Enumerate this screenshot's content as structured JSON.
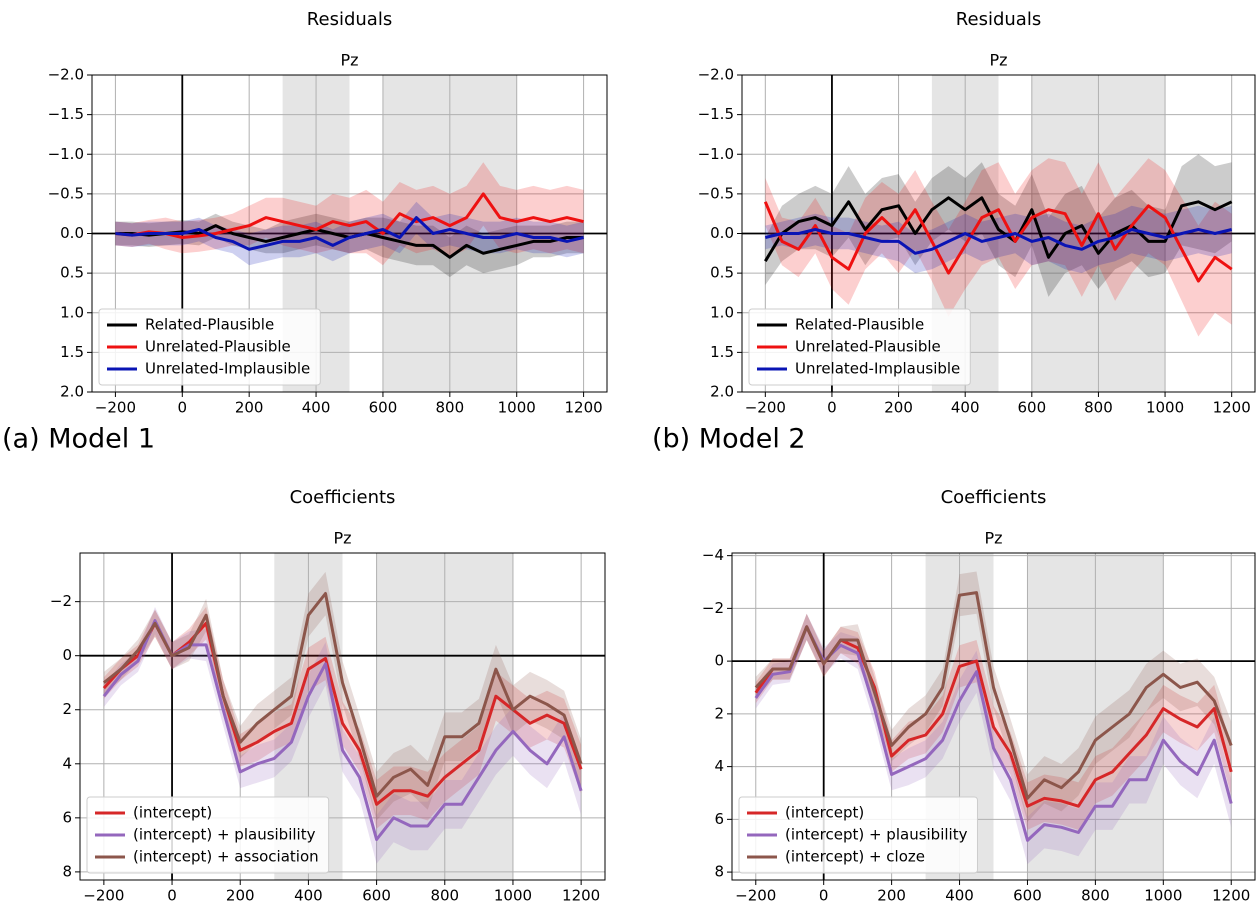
{
  "captions": [
    "(a) Model 1",
    "(b) Model 2"
  ],
  "chart_data": [
    {
      "type": "line",
      "title": "Residuals",
      "subtitle": "Pz",
      "x": [
        -200,
        -150,
        -100,
        -50,
        0,
        50,
        100,
        150,
        200,
        250,
        300,
        350,
        400,
        450,
        500,
        550,
        600,
        650,
        700,
        750,
        800,
        850,
        900,
        950,
        1000,
        1050,
        1100,
        1150,
        1200
      ],
      "xlim": [
        -270,
        1270
      ],
      "ylim": [
        2,
        -2
      ],
      "xticks": [
        {
          "value": -200,
          "label": "−200"
        },
        0,
        200,
        400,
        600,
        800,
        1000,
        1200
      ],
      "yticks": [
        {
          "value": -2,
          "label": "−2.0"
        },
        {
          "value": -1.5,
          "label": "−1.5"
        },
        {
          "value": -1,
          "label": "−1.0"
        },
        {
          "value": -0.5,
          "label": "−0.5"
        },
        {
          "value": 0,
          "label": "0.0"
        },
        0.5,
        {
          "value": 1,
          "label": "1.0"
        },
        1.5,
        {
          "value": 2,
          "label": "2.0"
        }
      ],
      "spans": [
        [
          300,
          500
        ],
        [
          600,
          1000
        ]
      ],
      "grid": true,
      "zero_lines": true,
      "legend": "lower left",
      "series": [
        {
          "name": "Related-Plausible",
          "color": "#000000",
          "values": [
            0,
            0,
            0.02,
            0,
            -0.02,
            0,
            -0.1,
            0,
            0.05,
            0.1,
            0.05,
            0,
            -0.05,
            0,
            0.05,
            0,
            0.05,
            0.1,
            0.15,
            0.15,
            0.3,
            0.15,
            0.25,
            0.2,
            0.15,
            0.1,
            0.1,
            0.05,
            0.05
          ],
          "error": [
            0.15,
            0.15,
            0.15,
            0.15,
            0.15,
            0.15,
            0.15,
            0.15,
            0.15,
            0.15,
            0.2,
            0.2,
            0.2,
            0.2,
            0.2,
            0.2,
            0.25,
            0.25,
            0.25,
            0.25,
            0.25,
            0.25,
            0.25,
            0.25,
            0.25,
            0.2,
            0.2,
            0.2,
            0.2
          ]
        },
        {
          "name": "Unrelated-Plausible",
          "color": "#ee1111",
          "values": [
            0,
            0.02,
            -0.02,
            0,
            0.05,
            0.03,
            0,
            -0.05,
            -0.1,
            -0.2,
            -0.15,
            -0.1,
            -0.05,
            -0.15,
            -0.1,
            -0.15,
            0,
            -0.25,
            -0.15,
            -0.2,
            -0.1,
            -0.2,
            -0.5,
            -0.2,
            -0.15,
            -0.2,
            -0.15,
            -0.2,
            -0.15
          ],
          "error": [
            0.15,
            0.15,
            0.15,
            0.2,
            0.2,
            0.2,
            0.2,
            0.2,
            0.25,
            0.25,
            0.3,
            0.3,
            0.3,
            0.35,
            0.35,
            0.4,
            0.4,
            0.4,
            0.4,
            0.4,
            0.4,
            0.4,
            0.4,
            0.4,
            0.4,
            0.4,
            0.4,
            0.4,
            0.4
          ]
        },
        {
          "name": "Unrelated-Implausible",
          "color": "#0a14b4",
          "values": [
            0,
            0.02,
            0,
            0,
            0,
            -0.05,
            0.05,
            0.1,
            0.2,
            0.15,
            0.1,
            0.1,
            0.05,
            0.15,
            0.05,
            0,
            -0.05,
            0.05,
            -0.2,
            0,
            -0.05,
            0,
            0.05,
            0.05,
            0,
            0.05,
            0.05,
            0.1,
            0.05
          ],
          "error": [
            0.15,
            0.15,
            0.15,
            0.15,
            0.15,
            0.15,
            0.15,
            0.15,
            0.2,
            0.2,
            0.2,
            0.2,
            0.2,
            0.2,
            0.2,
            0.2,
            0.2,
            0.2,
            0.2,
            0.2,
            0.2,
            0.2,
            0.2,
            0.2,
            0.2,
            0.2,
            0.2,
            0.2,
            0.2
          ]
        }
      ]
    },
    {
      "type": "line",
      "title": "Residuals",
      "subtitle": "Pz",
      "x": [
        -200,
        -150,
        -100,
        -50,
        0,
        50,
        100,
        150,
        200,
        250,
        300,
        350,
        400,
        450,
        500,
        550,
        600,
        650,
        700,
        750,
        800,
        850,
        900,
        950,
        1000,
        1050,
        1100,
        1150,
        1200
      ],
      "xlim": [
        -270,
        1270
      ],
      "ylim": [
        2,
        -2
      ],
      "xticks": [
        {
          "value": -200,
          "label": "−200"
        },
        0,
        200,
        400,
        600,
        800,
        1000,
        1200
      ],
      "yticks": [
        {
          "value": -2,
          "label": "−2.0"
        },
        {
          "value": -1.5,
          "label": "−1.5"
        },
        {
          "value": -1,
          "label": "−1.0"
        },
        {
          "value": -0.5,
          "label": "−0.5"
        },
        {
          "value": 0,
          "label": "0.0"
        },
        0.5,
        {
          "value": 1,
          "label": "1.0"
        },
        1.5,
        {
          "value": 2,
          "label": "2.0"
        }
      ],
      "spans": [
        [
          300,
          500
        ],
        [
          600,
          1000
        ]
      ],
      "grid": true,
      "zero_lines": true,
      "legend": "lower left",
      "series": [
        {
          "name": "Related-Plausible",
          "color": "#000000",
          "values": [
            0.35,
            0,
            -0.15,
            -0.2,
            -0.1,
            -0.4,
            -0.05,
            -0.3,
            -0.35,
            0,
            -0.3,
            -0.45,
            -0.3,
            -0.45,
            -0.05,
            0.1,
            -0.3,
            0.3,
            0,
            -0.1,
            0.25,
            0,
            -0.1,
            0.1,
            0.1,
            -0.35,
            -0.4,
            -0.3,
            -0.4
          ],
          "error": [
            0.3,
            0.35,
            0.35,
            0.4,
            0.4,
            0.45,
            0.45,
            0.4,
            0.4,
            0.4,
            0.4,
            0.4,
            0.4,
            0.45,
            0.45,
            0.45,
            0.45,
            0.5,
            0.5,
            0.5,
            0.45,
            0.45,
            0.45,
            0.45,
            0.4,
            0.5,
            0.6,
            0.55,
            0.5
          ]
        },
        {
          "name": "Unrelated-Plausible",
          "color": "#ee1111",
          "values": [
            -0.4,
            0.1,
            0.2,
            -0.1,
            0.3,
            0.45,
            0,
            -0.2,
            0,
            -0.3,
            0.1,
            0.5,
            0.15,
            -0.2,
            -0.3,
            0.1,
            -0.2,
            -0.3,
            -0.25,
            0.15,
            -0.25,
            0.2,
            -0.1,
            -0.35,
            -0.2,
            0.2,
            0.6,
            0.3,
            0.45
          ],
          "error": [
            0.3,
            0.3,
            0.35,
            0.35,
            0.4,
            0.45,
            0.45,
            0.45,
            0.5,
            0.5,
            0.5,
            0.55,
            0.55,
            0.6,
            0.6,
            0.6,
            0.6,
            0.65,
            0.65,
            0.65,
            0.65,
            0.65,
            0.6,
            0.6,
            0.6,
            0.65,
            0.7,
            0.7,
            0.7
          ]
        },
        {
          "name": "Unrelated-Implausible",
          "color": "#0a14b4",
          "values": [
            0.05,
            0,
            0,
            -0.05,
            0,
            0,
            0.05,
            0.1,
            0.1,
            0.25,
            0.2,
            0.1,
            0,
            0.1,
            0.05,
            0,
            0.1,
            0.05,
            0.15,
            0.2,
            0.1,
            0.05,
            -0.05,
            0,
            0.05,
            0,
            -0.05,
            0,
            -0.05
          ],
          "error": [
            0.15,
            0.15,
            0.2,
            0.2,
            0.2,
            0.2,
            0.2,
            0.2,
            0.25,
            0.25,
            0.25,
            0.25,
            0.25,
            0.25,
            0.25,
            0.25,
            0.3,
            0.3,
            0.3,
            0.3,
            0.3,
            0.3,
            0.3,
            0.3,
            0.3,
            0.3,
            0.3,
            0.3,
            0.3
          ]
        }
      ]
    },
    {
      "type": "line",
      "title": "Coefficients",
      "subtitle": "Pz",
      "x": [
        -200,
        -150,
        -100,
        -50,
        0,
        50,
        100,
        150,
        200,
        250,
        300,
        350,
        400,
        450,
        500,
        550,
        600,
        650,
        700,
        750,
        800,
        850,
        900,
        950,
        1000,
        1050,
        1100,
        1150,
        1200
      ],
      "xlim": [
        -270,
        1270
      ],
      "ylim": [
        8.3,
        -3.8
      ],
      "xticks": [
        {
          "value": -200,
          "label": "−200"
        },
        0,
        200,
        400,
        600,
        800,
        1000,
        1200
      ],
      "yticks": [
        {
          "value": -2,
          "label": "−2"
        },
        0,
        2,
        4,
        6,
        8
      ],
      "spans": [
        [
          300,
          500
        ],
        [
          600,
          1000
        ]
      ],
      "grid": true,
      "zero_lines": true,
      "legend": "lower left",
      "series": [
        {
          "name": "(intercept)",
          "color": "#d62728",
          "values": [
            1.2,
            0.5,
            0,
            -1.2,
            0,
            -0.5,
            -1.2,
            1.5,
            3.5,
            3.2,
            2.8,
            2.5,
            0.5,
            0.1,
            2.5,
            3.5,
            5.5,
            5,
            5,
            5.2,
            4.5,
            4,
            3.5,
            1.5,
            2,
            2.5,
            2.2,
            2.5,
            4.2
          ],
          "error": [
            0.4,
            0.4,
            0.4,
            0.5,
            0.5,
            0.5,
            0.6,
            0.6,
            0.6,
            0.7,
            0.7,
            0.7,
            0.8,
            0.8,
            0.8,
            0.8,
            0.9,
            0.9,
            0.9,
            0.9,
            0.9,
            0.9,
            0.9,
            0.9,
            0.9,
            0.9,
            0.9,
            0.9,
            0.9
          ]
        },
        {
          "name": "(intercept) + plausibility",
          "color": "#9467bd",
          "values": [
            1.5,
            0.7,
            0.2,
            -1.3,
            0,
            -0.4,
            -0.4,
            2,
            4.3,
            4,
            3.8,
            3.2,
            1.5,
            0.3,
            3.5,
            4.5,
            6.8,
            6,
            6.3,
            6.3,
            5.5,
            5.5,
            4.5,
            3.5,
            2.8,
            3.5,
            4,
            3,
            5
          ],
          "error": [
            0.4,
            0.4,
            0.4,
            0.5,
            0.5,
            0.5,
            0.6,
            0.6,
            0.6,
            0.7,
            0.7,
            0.7,
            0.8,
            0.8,
            0.8,
            0.8,
            0.9,
            0.9,
            0.9,
            0.9,
            0.9,
            0.9,
            0.9,
            0.9,
            0.9,
            0.9,
            0.9,
            0.9,
            0.9
          ]
        },
        {
          "name": "(intercept) + association",
          "color": "#8c564b",
          "values": [
            1,
            0.5,
            -0.2,
            -1.2,
            0,
            -0.3,
            -1.5,
            1.5,
            3.2,
            2.5,
            2,
            1.5,
            -1.5,
            -2.3,
            1,
            3,
            5.2,
            4.5,
            4.2,
            4.8,
            3,
            3,
            2.5,
            0.5,
            2,
            1.5,
            1.8,
            2.2,
            4
          ],
          "error": [
            0.4,
            0.4,
            0.4,
            0.5,
            0.5,
            0.5,
            0.6,
            0.6,
            0.6,
            0.7,
            0.7,
            0.7,
            0.8,
            0.8,
            0.8,
            0.8,
            0.9,
            0.9,
            0.9,
            0.9,
            0.9,
            0.9,
            0.9,
            0.9,
            0.9,
            0.9,
            0.9,
            0.9,
            0.9
          ]
        }
      ]
    },
    {
      "type": "line",
      "title": "Coefficients",
      "subtitle": "Pz",
      "x": [
        -200,
        -150,
        -100,
        -50,
        0,
        50,
        100,
        150,
        200,
        250,
        300,
        350,
        400,
        450,
        500,
        550,
        600,
        650,
        700,
        750,
        800,
        850,
        900,
        950,
        1000,
        1050,
        1100,
        1150,
        1200
      ],
      "xlim": [
        -270,
        1270
      ],
      "ylim": [
        8.3,
        -4.1
      ],
      "xticks": [
        {
          "value": -200,
          "label": "−200"
        },
        0,
        200,
        400,
        600,
        800,
        1000,
        1200
      ],
      "yticks": [
        {
          "value": -4,
          "label": "−4"
        },
        {
          "value": -2,
          "label": "−2"
        },
        0,
        2,
        4,
        6,
        8
      ],
      "spans": [
        [
          300,
          500
        ],
        [
          600,
          1000
        ]
      ],
      "grid": true,
      "zero_lines": true,
      "legend": "lower left",
      "series": [
        {
          "name": "(intercept)",
          "color": "#d62728",
          "values": [
            1.2,
            0.3,
            0.3,
            -1.3,
            0.1,
            -0.8,
            -0.5,
            1,
            3.6,
            3,
            2.8,
            2,
            0.2,
            0,
            2.5,
            3.5,
            5.5,
            5.2,
            5.3,
            5.5,
            4.5,
            4.2,
            3.5,
            2.8,
            1.8,
            2.2,
            2.5,
            1.8,
            4.2
          ],
          "error": [
            0.4,
            0.4,
            0.4,
            0.5,
            0.5,
            0.5,
            0.6,
            0.6,
            0.6,
            0.7,
            0.7,
            0.7,
            0.8,
            0.8,
            0.8,
            0.8,
            0.9,
            0.9,
            0.9,
            0.9,
            0.9,
            0.9,
            0.9,
            0.9,
            0.9,
            0.9,
            0.9,
            0.9,
            0.9
          ]
        },
        {
          "name": "(intercept) + plausibility",
          "color": "#9467bd",
          "values": [
            1.4,
            0.5,
            0.4,
            -1.3,
            0,
            -0.6,
            -0.3,
            1.8,
            4.3,
            4,
            3.7,
            3,
            1.5,
            0.4,
            3.3,
            4.5,
            6.8,
            6.2,
            6.3,
            6.5,
            5.5,
            5.5,
            4.5,
            4.5,
            3,
            3.8,
            4.3,
            3,
            5.4
          ],
          "error": [
            0.4,
            0.4,
            0.4,
            0.5,
            0.5,
            0.5,
            0.6,
            0.6,
            0.6,
            0.7,
            0.7,
            0.7,
            0.8,
            0.8,
            0.8,
            0.8,
            0.9,
            0.9,
            0.9,
            0.9,
            0.9,
            0.9,
            0.9,
            0.9,
            0.9,
            0.9,
            0.9,
            0.9,
            0.9
          ]
        },
        {
          "name": "(intercept) + cloze",
          "color": "#8c564b",
          "values": [
            1,
            0.3,
            0.3,
            -1.3,
            0.1,
            -0.8,
            -0.8,
            1.2,
            3.2,
            2.5,
            2,
            1,
            -2.5,
            -2.6,
            1,
            3,
            5.2,
            4.5,
            4.8,
            4.2,
            3,
            2.5,
            2,
            1,
            0.5,
            1,
            0.8,
            1.5,
            3.2
          ],
          "error": [
            0.4,
            0.4,
            0.4,
            0.5,
            0.5,
            0.5,
            0.6,
            0.6,
            0.6,
            0.7,
            0.7,
            0.7,
            0.8,
            0.8,
            0.8,
            0.8,
            0.9,
            0.9,
            0.9,
            0.9,
            0.9,
            0.9,
            0.9,
            0.9,
            0.9,
            0.9,
            0.9,
            0.9,
            0.9
          ]
        }
      ]
    }
  ]
}
